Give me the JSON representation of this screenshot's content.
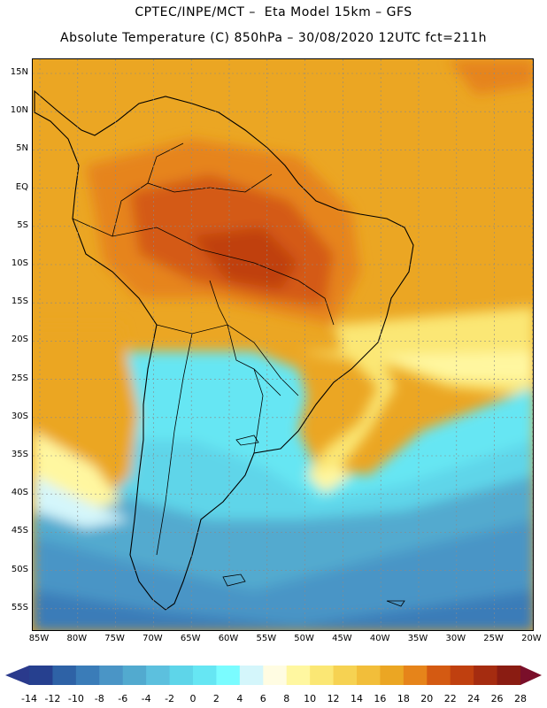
{
  "header": {
    "line1": "CPTEC/INPE/MCT –  Eta Model 15km – GFS",
    "line2": "Absolute Temperature (C) 850hPa – 30/08/2020 12UTC fct=211h"
  },
  "map": {
    "variable": "Absolute Temperature",
    "units": "C",
    "level": "850hPa",
    "lat_labels": [
      "15N",
      "10N",
      "5N",
      "EQ",
      "5S",
      "10S",
      "15S",
      "20S",
      "25S",
      "30S",
      "35S",
      "40S",
      "45S",
      "50S",
      "55S"
    ],
    "lon_labels": [
      "85W",
      "80W",
      "75W",
      "70W",
      "65W",
      "60W",
      "55W",
      "50W",
      "45W",
      "40W",
      "35W",
      "30W",
      "25W",
      "20W"
    ],
    "lat_values": [
      15,
      10,
      5,
      0,
      -5,
      -10,
      -15,
      -20,
      -25,
      -30,
      -35,
      -40,
      -45,
      -50,
      -55
    ],
    "lon_values": [
      -85,
      -80,
      -75,
      -70,
      -65,
      -60,
      -55,
      -50,
      -45,
      -40,
      -35,
      -30,
      -25,
      -20
    ]
  },
  "colorbar": {
    "labels": [
      "-14",
      "-12",
      "-10",
      "-8",
      "-6",
      "-4",
      "-2",
      "0",
      "2",
      "4",
      "6",
      "8",
      "10",
      "12",
      "14",
      "16",
      "18",
      "20",
      "22",
      "24",
      "26",
      "28"
    ],
    "values": [
      -14,
      -12,
      -10,
      -8,
      -6,
      -4,
      -2,
      0,
      2,
      4,
      6,
      8,
      10,
      12,
      14,
      16,
      18,
      20,
      22,
      24,
      26,
      28
    ],
    "under_color": "#2a3a8c",
    "over_color": "#7a0f2a",
    "colors": [
      "#26408f",
      "#2e62a6",
      "#3a7cb8",
      "#4a95c6",
      "#52aacf",
      "#5cc0de",
      "#5ed5e9",
      "#66e6f3",
      "#7afcff",
      "#d4f6fb",
      "#fffce2",
      "#fff7a0",
      "#fbe774",
      "#f6d252",
      "#f2be3a",
      "#eba623",
      "#e6841a",
      "#d45a12",
      "#c0400f",
      "#a52c10",
      "#8a1c12"
    ]
  }
}
